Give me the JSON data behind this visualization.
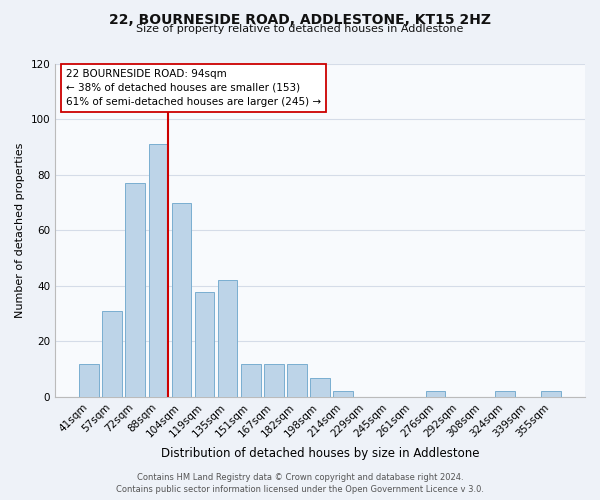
{
  "title": "22, BOURNESIDE ROAD, ADDLESTONE, KT15 2HZ",
  "subtitle": "Size of property relative to detached houses in Addlestone",
  "xlabel": "Distribution of detached houses by size in Addlestone",
  "ylabel": "Number of detached properties",
  "bar_labels": [
    "41sqm",
    "57sqm",
    "72sqm",
    "88sqm",
    "104sqm",
    "119sqm",
    "135sqm",
    "151sqm",
    "167sqm",
    "182sqm",
    "198sqm",
    "214sqm",
    "229sqm",
    "245sqm",
    "261sqm",
    "276sqm",
    "292sqm",
    "308sqm",
    "324sqm",
    "339sqm",
    "355sqm"
  ],
  "bar_values": [
    12,
    31,
    77,
    91,
    70,
    38,
    42,
    12,
    12,
    12,
    7,
    2,
    0,
    0,
    0,
    2,
    0,
    0,
    2,
    0,
    2
  ],
  "bar_color": "#bdd4e8",
  "bar_edge_color": "#7aaed0",
  "ylim": [
    0,
    120
  ],
  "yticks": [
    0,
    20,
    40,
    60,
    80,
    100,
    120
  ],
  "vline_color": "#cc0000",
  "annotation_line1": "22 BOURNESIDE ROAD: 94sqm",
  "annotation_line2": "← 38% of detached houses are smaller (153)",
  "annotation_line3": "61% of semi-detached houses are larger (245) →",
  "footer_text": "Contains HM Land Registry data © Crown copyright and database right 2024.\nContains public sector information licensed under the Open Government Licence v 3.0.",
  "background_color": "#eef2f8",
  "plot_background_color": "#f8fafd",
  "grid_color": "#d5dce8"
}
